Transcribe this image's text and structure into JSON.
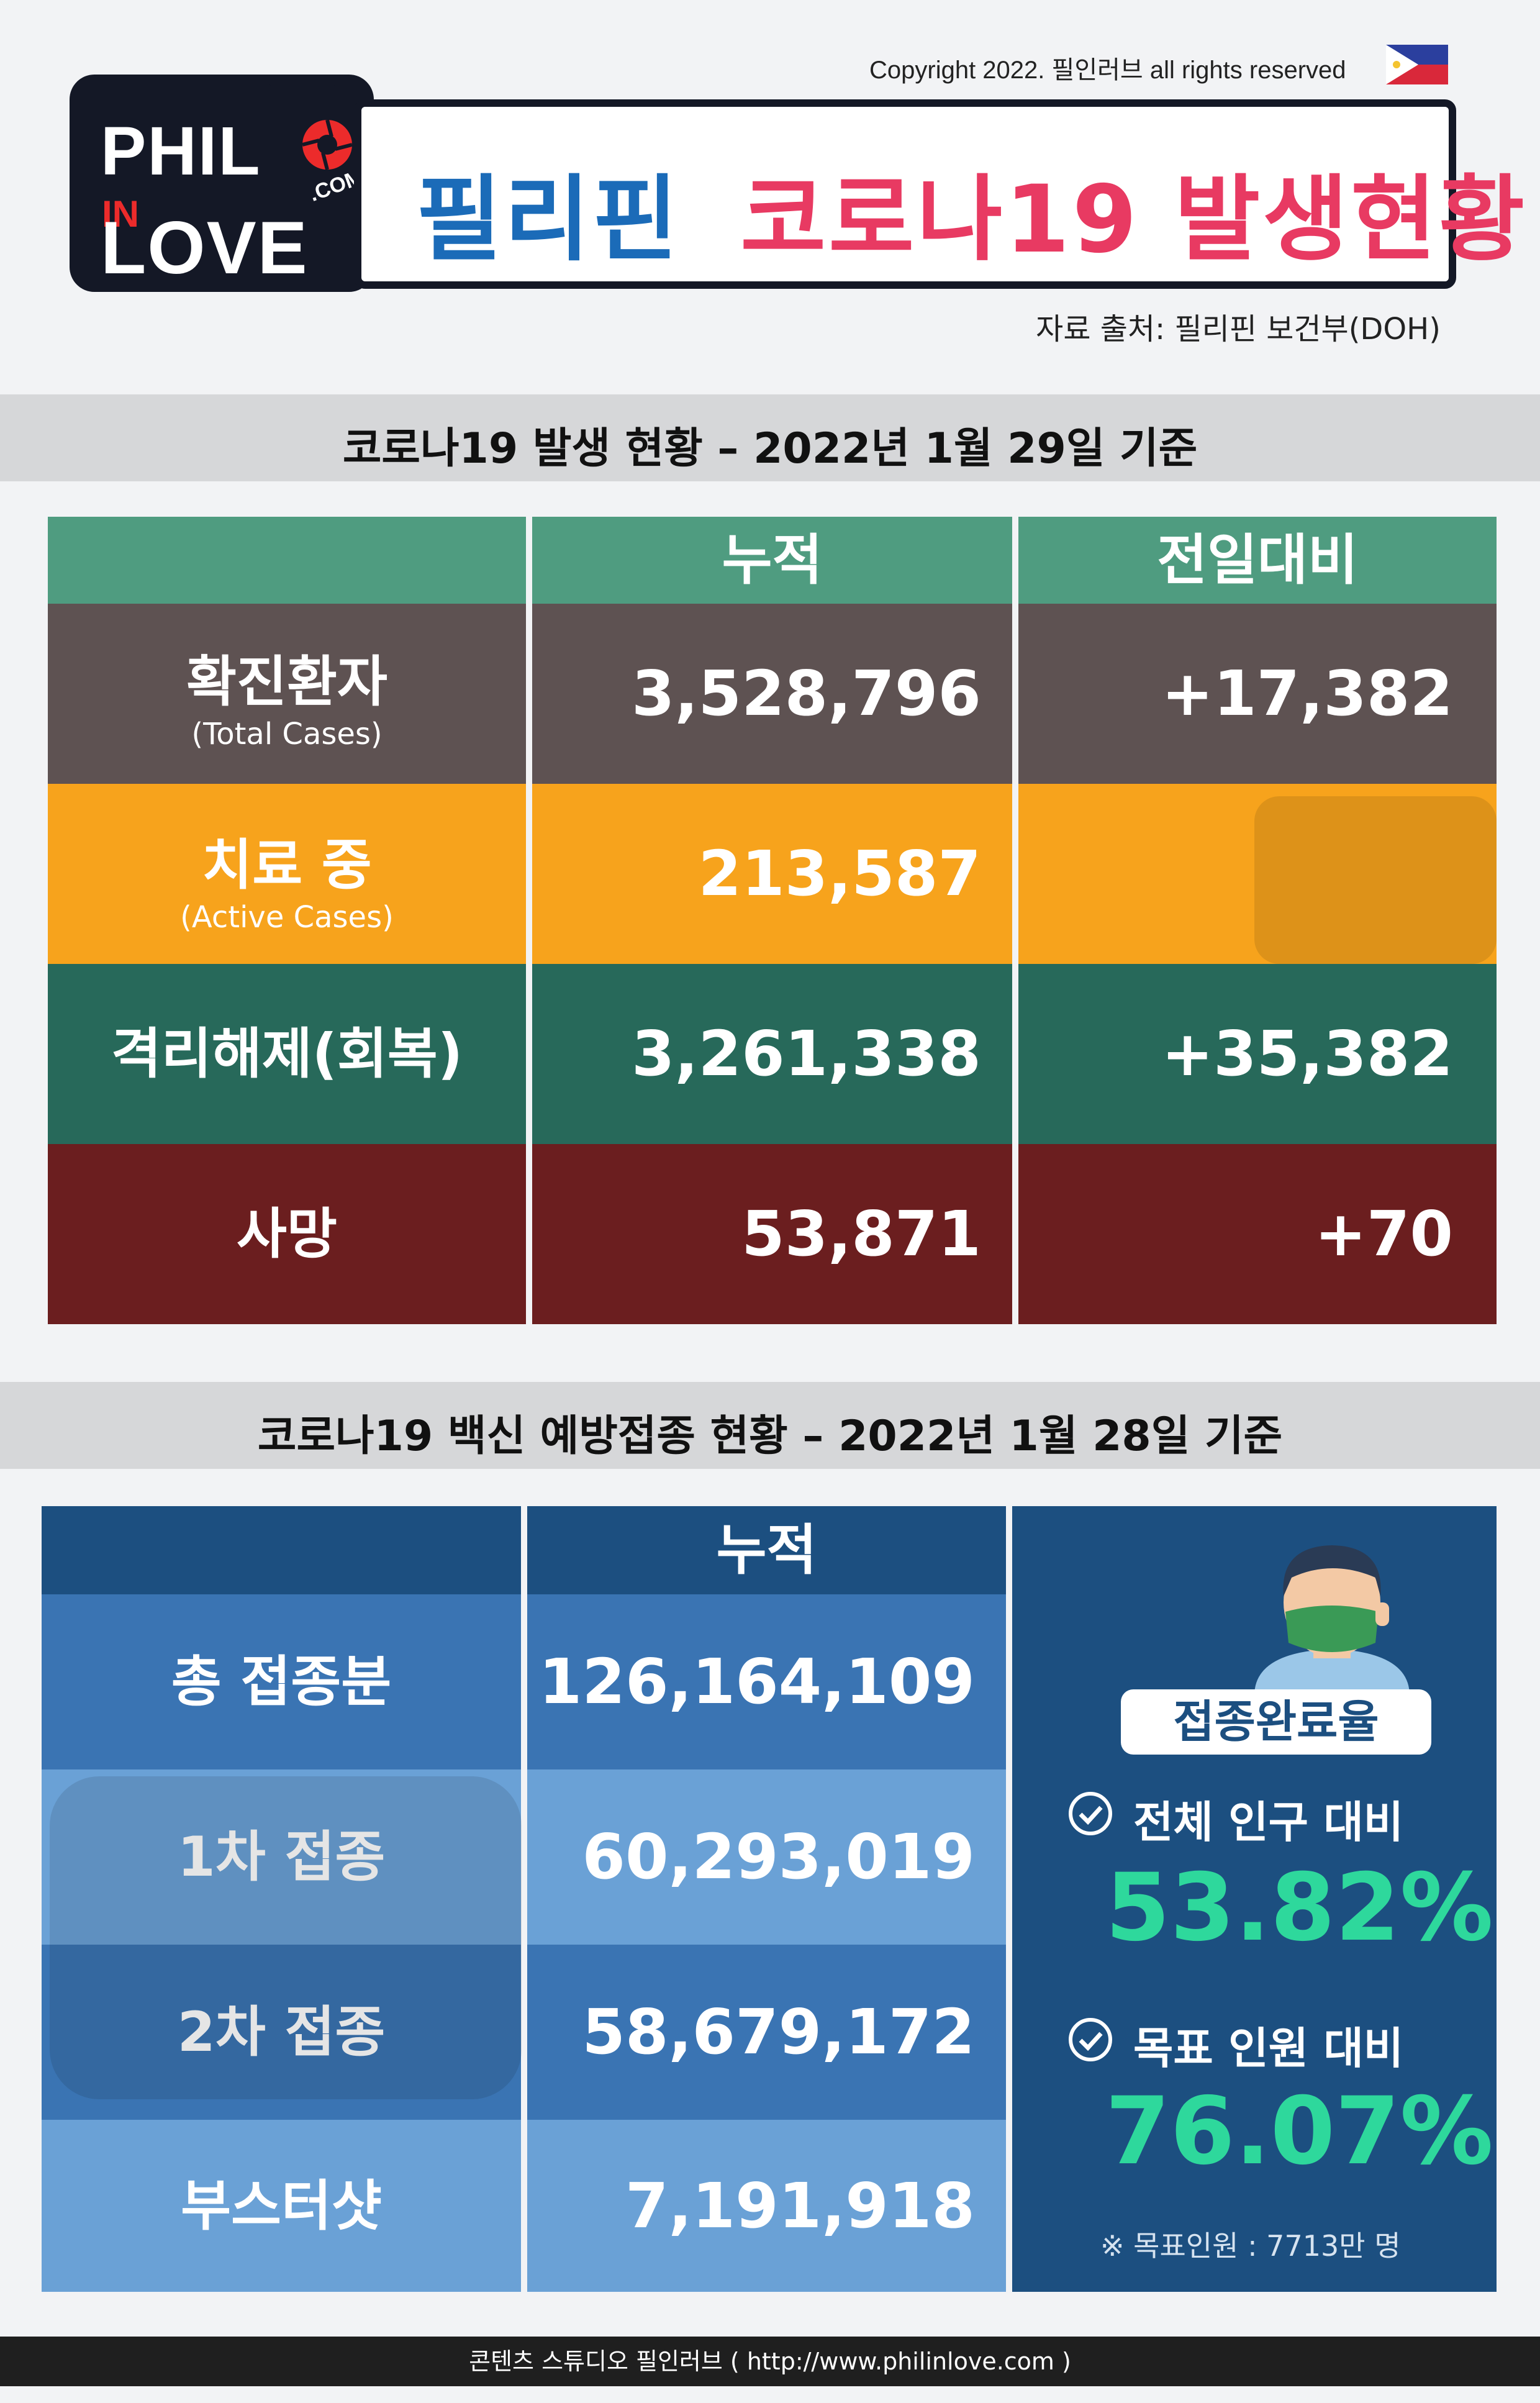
{
  "header": {
    "copyright": "Copyright 2022. 필인러브 all rights reserved",
    "logo": {
      "line1": "PHIL",
      "line2": "IN",
      "line3": "LOVE",
      "dotcom": ".COM"
    },
    "title_part1": "필리핀",
    "title_part2": "코로나19 발생현황",
    "source": "자료 출처: 필리핀 보건부(DOH)"
  },
  "cases_section": {
    "title": "코로나19 발생 현황 – 2022년 1월 29일 기준",
    "col_cumulative": "누적",
    "col_change": "전일대비",
    "rows": [
      {
        "label": "확진환자",
        "sub": "(Total Cases)",
        "cumulative": "3,528,796",
        "change": "+17,382",
        "color": "#5e5252"
      },
      {
        "label": "치료 중",
        "sub": "(Active Cases)",
        "cumulative": "213,587",
        "change": "",
        "color": "#f7a31c"
      },
      {
        "label": "격리해제(회복)",
        "sub": "",
        "cumulative": "3,261,338",
        "change": "+35,382",
        "color": "#27695a"
      },
      {
        "label": "사망",
        "sub": "",
        "cumulative": "53,871",
        "change": "+70",
        "color": "#6b1e1f"
      }
    ],
    "header_color": "#4f9c80"
  },
  "vaccine_section": {
    "title": "코로나19 백신 예방접종 현황 – 2022년 1월 28일 기준",
    "col_cumulative": "누적",
    "rows": [
      {
        "label": "총 접종분",
        "value": "126,164,109"
      },
      {
        "label": "1차 접종",
        "value": "60,293,019"
      },
      {
        "label": "2차 접종",
        "value": "58,679,172"
      },
      {
        "label": "부스터샷",
        "value": "7,191,918"
      }
    ],
    "completion_badge": "접종완료율",
    "population_label": "전체 인구 대비",
    "population_value": "53.82%",
    "target_label": "목표 인원 대비",
    "target_value": "76.07%",
    "target_note": "※ 목표인원 : 7713만 명",
    "accent_color": "#2ed89c"
  },
  "footer": {
    "text": "콘텐츠 스튜디오 필인러브 ( http://www.philinlove.com )"
  }
}
